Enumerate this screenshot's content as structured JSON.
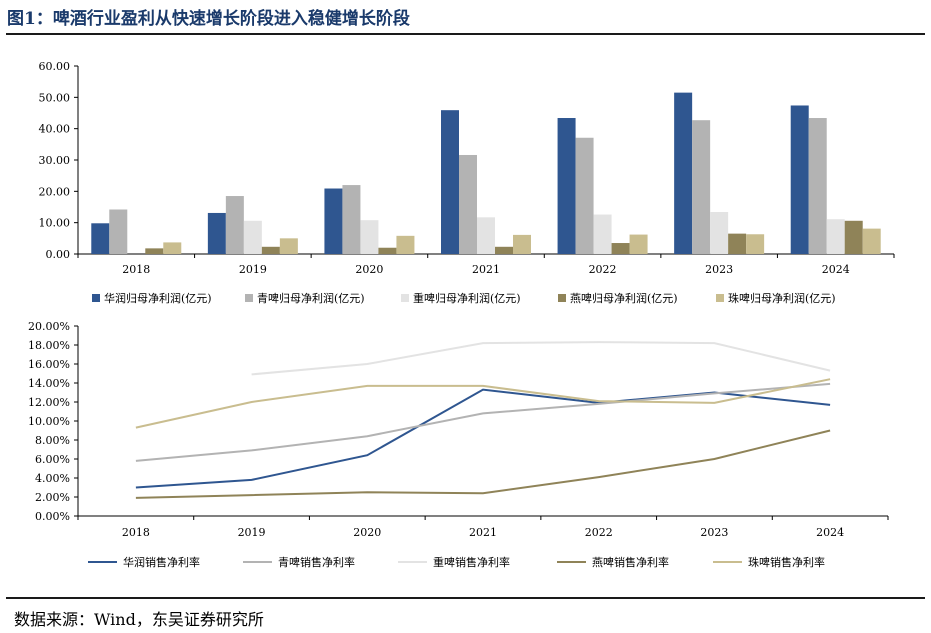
{
  "figure": {
    "title": "图1：啤酒行业盈利从快速增长阶段进入稳健增长阶段",
    "source": "数据来源：Wind，东吴证券研究所"
  },
  "chart_data": [
    {
      "type": "bar",
      "categories": [
        "2018",
        "2019",
        "2020",
        "2021",
        "2022",
        "2023",
        "2024"
      ],
      "ylim": [
        0,
        60
      ],
      "yticks": [
        "0.00",
        "10.00",
        "20.00",
        "30.00",
        "40.00",
        "50.00",
        "60.00"
      ],
      "legend_position": "bottom",
      "grid": false,
      "series": [
        {
          "name": "华润归母净利润(亿元)",
          "color": "#2f5690",
          "values": [
            9.8,
            13.1,
            20.9,
            45.9,
            43.4,
            51.5,
            47.4
          ]
        },
        {
          "name": "青啤归母净利润(亿元)",
          "color": "#b3b3b3",
          "values": [
            14.2,
            18.5,
            22.0,
            31.6,
            37.1,
            42.7,
            43.4
          ]
        },
        {
          "name": "重啤归母净利润(亿元)",
          "color": "#e3e3e3",
          "values": [
            null,
            10.6,
            10.8,
            11.7,
            12.6,
            13.4,
            11.1
          ]
        },
        {
          "name": "燕啤归母净利润(亿元)",
          "color": "#8f8358",
          "values": [
            1.8,
            2.3,
            2.0,
            2.3,
            3.5,
            6.5,
            10.6
          ]
        },
        {
          "name": "珠啤归母净利润(亿元)",
          "color": "#c9bd8f",
          "values": [
            3.7,
            5.0,
            5.8,
            6.1,
            6.2,
            6.3,
            8.1
          ]
        }
      ]
    },
    {
      "type": "line",
      "categories": [
        "2018",
        "2019",
        "2020",
        "2021",
        "2022",
        "2023",
        "2024"
      ],
      "ylim": [
        0,
        20
      ],
      "yticks": [
        "0.00%",
        "2.00%",
        "4.00%",
        "6.00%",
        "8.00%",
        "10.00%",
        "12.00%",
        "14.00%",
        "16.00%",
        "18.00%",
        "20.00%"
      ],
      "legend_position": "bottom",
      "grid": false,
      "series": [
        {
          "name": "华润销售净利率",
          "color": "#2f5690",
          "values": [
            3.0,
            3.8,
            6.4,
            13.3,
            11.9,
            13.0,
            11.7
          ]
        },
        {
          "name": "青啤销售净利率",
          "color": "#b3b3b3",
          "values": [
            5.8,
            6.9,
            8.4,
            10.8,
            11.8,
            12.9,
            13.9
          ]
        },
        {
          "name": "重啤销售净利率",
          "color": "#e3e3e3",
          "values": [
            null,
            14.9,
            16.0,
            18.2,
            18.3,
            18.2,
            15.3
          ]
        },
        {
          "name": "燕啤销售净利率",
          "color": "#8f8358",
          "values": [
            1.9,
            2.2,
            2.5,
            2.4,
            4.1,
            6.0,
            9.0
          ]
        },
        {
          "name": "珠啤销售净利率",
          "color": "#c9bd8f",
          "values": [
            9.3,
            12.0,
            13.7,
            13.7,
            12.1,
            11.9,
            14.4
          ]
        }
      ]
    }
  ]
}
